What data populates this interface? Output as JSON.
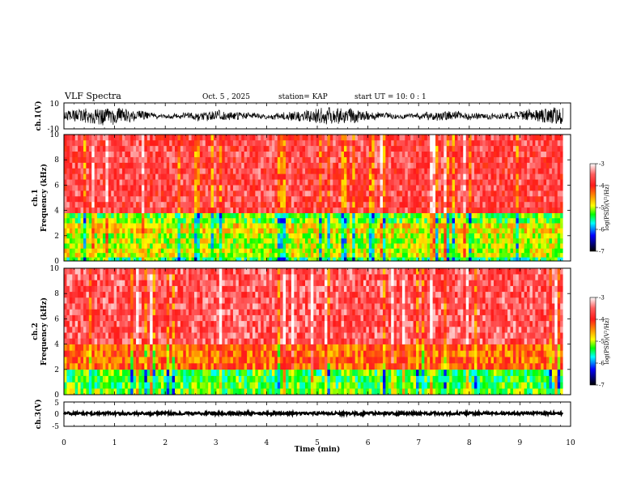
{
  "header": {
    "title": "VLF  Spectra",
    "date": "Oct. 5  , 2025",
    "station": "station= KAP",
    "start": "start  UT  =   10: 0   : 1"
  },
  "chart_data": [
    {
      "type": "line",
      "id": "ch1-waveform",
      "ylabel": "ch.1(V)",
      "ylim": [
        -10,
        10
      ],
      "yticks": [
        "10",
        "-10"
      ],
      "xlim": [
        0,
        10
      ],
      "data_end_min": 9.85
    },
    {
      "type": "heatmap",
      "id": "ch1-spectrogram",
      "ylabel": "ch.1",
      "ylabel2": "Frequency  (kHz)",
      "ylim": [
        0,
        10
      ],
      "yticks": [
        "0",
        "2",
        "4",
        "6",
        "8",
        "10"
      ],
      "xlim": [
        0,
        10
      ],
      "colorbar": {
        "label": "log(PSD)(V²/Hz)",
        "range": [
          -7,
          -3
        ],
        "ticks": [
          "-3",
          "-4",
          "-5",
          "-6",
          "-7"
        ]
      },
      "bands_khz": [
        {
          "from": 0,
          "to": 0.3,
          "level": -5.4
        },
        {
          "from": 0.3,
          "to": 1.0,
          "level": -4.9
        },
        {
          "from": 1.0,
          "to": 2.2,
          "level": -5.0
        },
        {
          "from": 2.2,
          "to": 3.0,
          "level": -4.8
        },
        {
          "from": 3.0,
          "to": 3.8,
          "level": -5.2
        },
        {
          "from": 3.8,
          "to": 10,
          "level": -3.7
        }
      ]
    },
    {
      "type": "heatmap",
      "id": "ch2-spectrogram",
      "ylabel": "ch.2",
      "ylabel2": "Frequency  (kHz)",
      "ylim": [
        0,
        10
      ],
      "yticks": [
        "0",
        "2",
        "4",
        "6",
        "8",
        "10"
      ],
      "xlim": [
        0,
        10
      ],
      "colorbar": {
        "label": "log(PSD)(V²/Hz)",
        "range": [
          -7,
          -3
        ],
        "ticks": [
          "-3",
          "-4",
          "-5",
          "-6",
          "-7"
        ]
      },
      "bands_khz": [
        {
          "from": 0,
          "to": 0.5,
          "level": -5.2
        },
        {
          "from": 0.5,
          "to": 2.0,
          "level": -5.3
        },
        {
          "from": 2.0,
          "to": 4.0,
          "level": -4.3
        },
        {
          "from": 4.0,
          "to": 10,
          "level": -3.6
        }
      ]
    },
    {
      "type": "line",
      "id": "ch3-waveform",
      "ylabel": "ch.3(V)",
      "ylim": [
        -5,
        5
      ],
      "yticks": [
        "5",
        "0",
        "-5"
      ],
      "xlim": [
        0,
        10
      ],
      "xlabel": "Time  (min)",
      "xticks": [
        "0",
        "1",
        "2",
        "3",
        "4",
        "5",
        "6",
        "7",
        "8",
        "9",
        "10"
      ],
      "baseline_v": 0.3,
      "data_end_min": 9.85
    }
  ]
}
